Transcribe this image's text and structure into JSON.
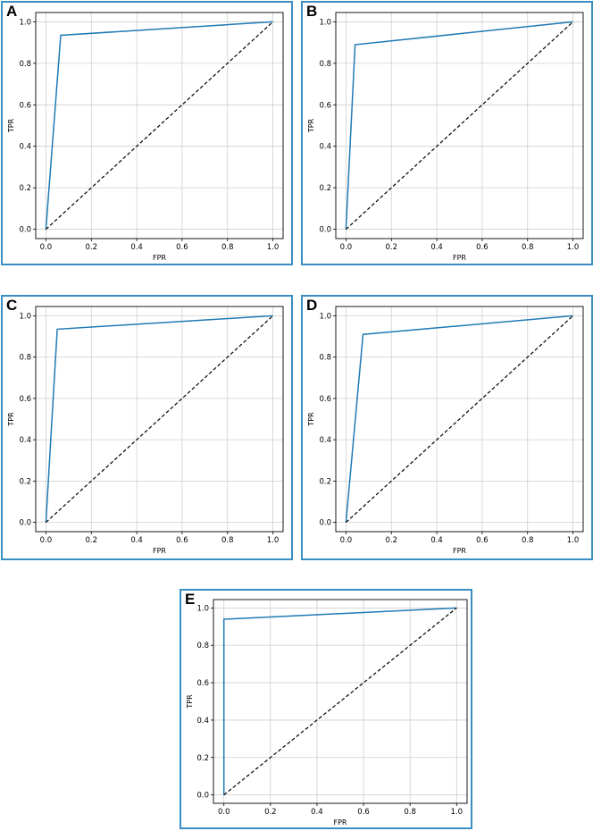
{
  "style": {
    "roc_color": "#1f7ab5",
    "diagonal_color": "#000000",
    "grid_color": "#cfcfcf",
    "border_color": "#3a8fc2"
  },
  "chart_data": [
    {
      "label": "A",
      "type": "line",
      "xlabel": "FPR",
      "ylabel": "TPR",
      "xlim": [
        0,
        1
      ],
      "ylim": [
        0,
        1
      ],
      "grid": true,
      "xticks": [
        "0.0",
        "0.2",
        "0.4",
        "0.6",
        "0.8",
        "1.0"
      ],
      "yticks": [
        "0.0",
        "0.2",
        "0.4",
        "0.6",
        "0.8",
        "1.0"
      ],
      "series": [
        {
          "style": "solid",
          "x": [
            0.0,
            0.065,
            1.0
          ],
          "y": [
            0.0,
            0.935,
            1.0
          ]
        },
        {
          "style": "dashed",
          "x": [
            0.0,
            1.0
          ],
          "y": [
            0.0,
            1.0
          ]
        }
      ]
    },
    {
      "label": "B",
      "type": "line",
      "xlabel": "FPR",
      "ylabel": "TPR",
      "xlim": [
        0,
        1
      ],
      "ylim": [
        0,
        1
      ],
      "grid": true,
      "xticks": [
        "0.0",
        "0.2",
        "0.4",
        "0.6",
        "0.8",
        "1.0"
      ],
      "yticks": [
        "0.0",
        "0.2",
        "0.4",
        "0.6",
        "0.8",
        "1.0"
      ],
      "series": [
        {
          "style": "solid",
          "x": [
            0.0,
            0.04,
            1.0
          ],
          "y": [
            0.0,
            0.89,
            1.0
          ]
        },
        {
          "style": "dashed",
          "x": [
            0.0,
            1.0
          ],
          "y": [
            0.0,
            1.0
          ]
        }
      ]
    },
    {
      "label": "C",
      "type": "line",
      "xlabel": "FPR",
      "ylabel": "TPR",
      "xlim": [
        0,
        1
      ],
      "ylim": [
        0,
        1
      ],
      "grid": true,
      "xticks": [
        "0.0",
        "0.2",
        "0.4",
        "0.6",
        "0.8",
        "1.0"
      ],
      "yticks": [
        "0.0",
        "0.2",
        "0.4",
        "0.6",
        "0.8",
        "1.0"
      ],
      "series": [
        {
          "style": "solid",
          "x": [
            0.0,
            0.05,
            1.0
          ],
          "y": [
            0.0,
            0.935,
            1.0
          ]
        },
        {
          "style": "dashed",
          "x": [
            0.0,
            1.0
          ],
          "y": [
            0.0,
            1.0
          ]
        }
      ]
    },
    {
      "label": "D",
      "type": "line",
      "xlabel": "FPR",
      "ylabel": "TPR",
      "xlim": [
        0,
        1
      ],
      "ylim": [
        0,
        1
      ],
      "grid": true,
      "xticks": [
        "0.0",
        "0.2",
        "0.4",
        "0.6",
        "0.8",
        "1.0"
      ],
      "yticks": [
        "0.0",
        "0.2",
        "0.4",
        "0.6",
        "0.8",
        "1.0"
      ],
      "series": [
        {
          "style": "solid",
          "x": [
            0.0,
            0.075,
            1.0
          ],
          "y": [
            0.0,
            0.91,
            1.0
          ]
        },
        {
          "style": "dashed",
          "x": [
            0.0,
            1.0
          ],
          "y": [
            0.0,
            1.0
          ]
        }
      ]
    },
    {
      "label": "E",
      "type": "line",
      "xlabel": "FPR",
      "ylabel": "TPR",
      "xlim": [
        0,
        1
      ],
      "ylim": [
        0,
        1
      ],
      "grid": true,
      "xticks": [
        "0.0",
        "0.2",
        "0.4",
        "0.6",
        "0.8",
        "1.0"
      ],
      "yticks": [
        "0.0",
        "0.2",
        "0.4",
        "0.6",
        "0.8",
        "1.0"
      ],
      "series": [
        {
          "style": "solid",
          "x": [
            0.0,
            0.0,
            1.0
          ],
          "y": [
            0.0,
            0.94,
            1.0
          ]
        },
        {
          "style": "dashed",
          "x": [
            0.0,
            1.0
          ],
          "y": [
            0.0,
            1.0
          ]
        }
      ]
    }
  ]
}
